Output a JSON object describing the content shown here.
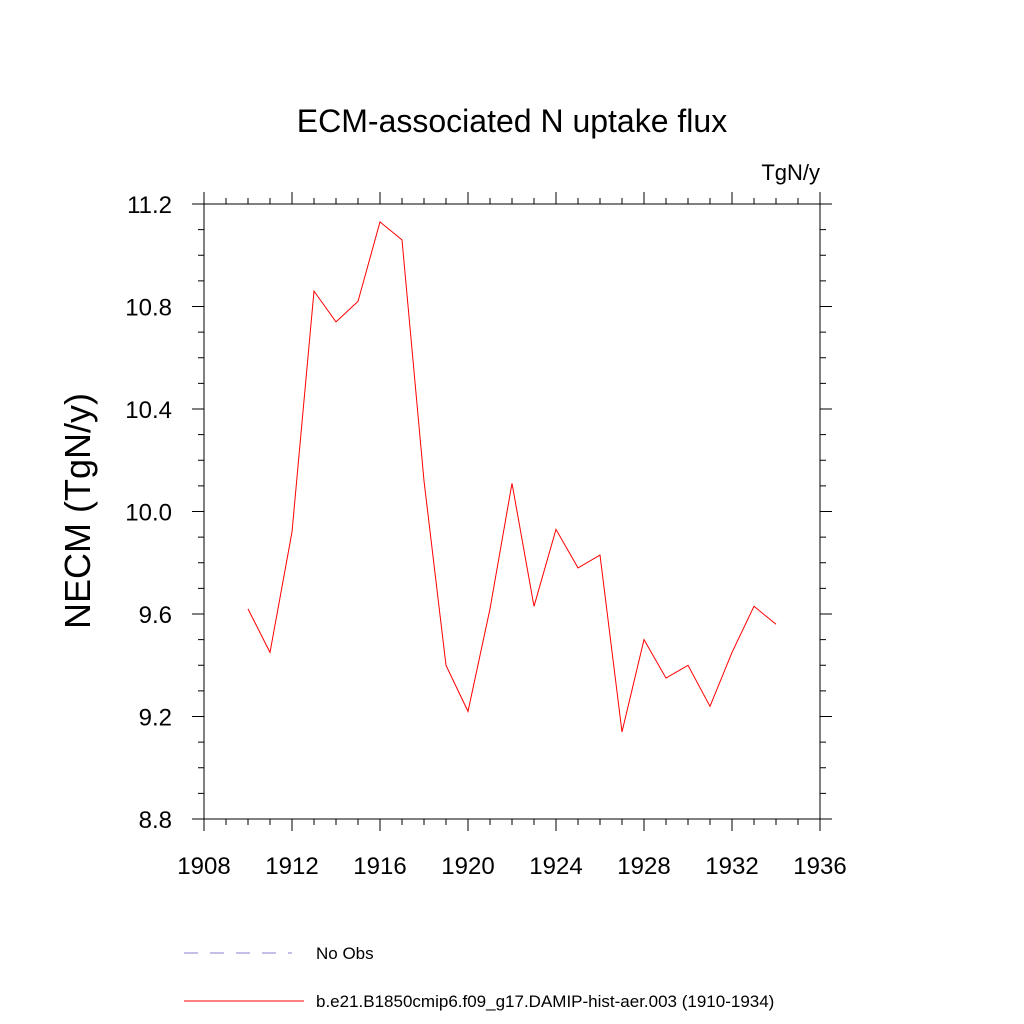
{
  "chart_data": {
    "type": "line",
    "title": "ECM-associated N uptake flux",
    "units_label": "TgN/y",
    "xlabel": "",
    "ylabel": "NECM  (TgN/y)",
    "xlim": [
      1908,
      1936
    ],
    "ylim": [
      8.8,
      11.2
    ],
    "x_ticks": [
      1908,
      1912,
      1916,
      1920,
      1924,
      1928,
      1932,
      1936
    ],
    "x_tick_labels": [
      "1908",
      "1912",
      "1916",
      "1920",
      "1924",
      "1928",
      "1932",
      "1936"
    ],
    "y_ticks": [
      8.8,
      9.2,
      9.6,
      10.0,
      10.4,
      10.8,
      11.2
    ],
    "y_tick_labels": [
      "8.8",
      "9.2",
      "9.6",
      "10.0",
      "10.4",
      "10.8",
      "11.2"
    ],
    "grid": false,
    "legend_position": "bottom",
    "series": [
      {
        "name": "b.e21.B1850cmip6.f09_g17.DAMIP-hist-aer.003 (1910-1934)",
        "color": "#ff0000",
        "style": "solid",
        "x": [
          1910,
          1911,
          1912,
          1913,
          1914,
          1915,
          1916,
          1917,
          1918,
          1919,
          1920,
          1921,
          1922,
          1923,
          1924,
          1925,
          1926,
          1927,
          1928,
          1929,
          1930,
          1931,
          1932,
          1933,
          1934
        ],
        "y": [
          9.62,
          9.45,
          9.92,
          10.86,
          10.74,
          10.82,
          11.13,
          11.06,
          10.12,
          9.4,
          9.22,
          9.62,
          10.11,
          9.63,
          9.93,
          9.78,
          9.83,
          9.14,
          9.5,
          9.35,
          9.4,
          9.24,
          9.45,
          9.63,
          9.56
        ]
      }
    ],
    "legend": [
      {
        "label": "No Obs",
        "color": "#8a7fd0",
        "style": "dashed"
      },
      {
        "label": "b.e21.B1850cmip6.f09_g17.DAMIP-hist-aer.003 (1910-1934)",
        "color": "#ff0000",
        "style": "solid"
      }
    ]
  }
}
